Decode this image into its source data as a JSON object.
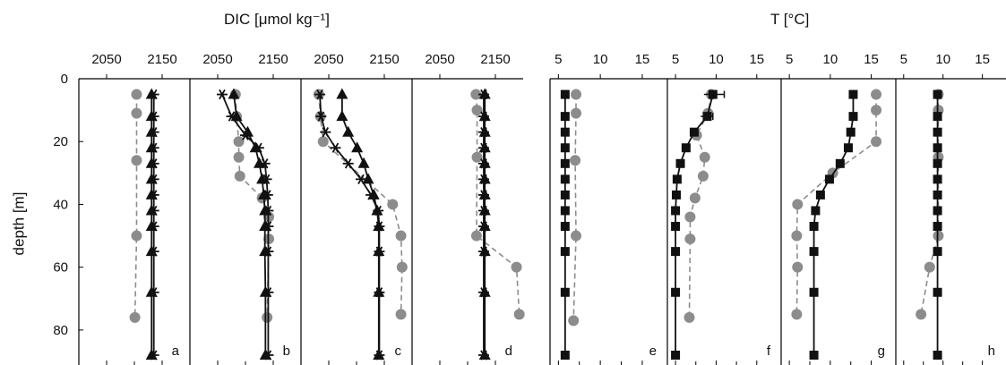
{
  "titles": {
    "dic": "DIC [μmol kg⁻¹]",
    "temperature": "T [°C]",
    "ylabel": "depth [m]"
  },
  "colors": {
    "axis": "#000000",
    "grey_series": "#8c8c8c",
    "black_series": "#111111"
  },
  "chart_data": [
    {
      "type": "line",
      "panel": "a",
      "xlabel": "DIC [μmol kg⁻¹]",
      "ylabel": "depth [m]",
      "xlim": [
        2000,
        2200
      ],
      "xticks": [
        2050,
        2150
      ],
      "ylim": [
        90,
        0
      ],
      "yticks": [
        0,
        20,
        40,
        60,
        80
      ],
      "series": [
        {
          "marker": "circle",
          "color": "#8c8c8c",
          "dashed": true,
          "points": [
            [
              2104,
              5
            ],
            [
              2104,
              11
            ],
            [
              2104,
              26
            ],
            [
              2104,
              50
            ],
            [
              2101,
              76
            ]
          ]
        },
        {
          "marker": "star",
          "color": "#111111",
          "dashed": false,
          "points": [
            [
              2135,
              5
            ],
            [
              2135,
              12
            ],
            [
              2135,
              17
            ],
            [
              2135,
              22
            ],
            [
              2135,
              27
            ],
            [
              2135,
              32
            ],
            [
              2135,
              37
            ],
            [
              2135,
              42
            ],
            [
              2135,
              47
            ],
            [
              2135,
              55
            ],
            [
              2135,
              68
            ],
            [
              2135,
              88
            ]
          ]
        },
        {
          "marker": "triangle",
          "color": "#111111",
          "dashed": false,
          "points": [
            [
              2131,
              5
            ],
            [
              2131,
              12
            ],
            [
              2131,
              17
            ],
            [
              2131,
              22
            ],
            [
              2131,
              27
            ],
            [
              2131,
              32
            ],
            [
              2131,
              37
            ],
            [
              2131,
              42
            ],
            [
              2131,
              47
            ],
            [
              2131,
              55
            ],
            [
              2131,
              68
            ],
            [
              2131,
              88
            ]
          ]
        }
      ]
    },
    {
      "type": "line",
      "panel": "b",
      "xlim": [
        2000,
        2200
      ],
      "xticks": [
        2050,
        2150
      ],
      "ylim": [
        90,
        0
      ],
      "series": [
        {
          "marker": "circle",
          "color": "#8c8c8c",
          "dashed": true,
          "points": [
            [
              2082,
              5
            ],
            [
              2084,
              12
            ],
            [
              2088,
              20
            ],
            [
              2088,
              25
            ],
            [
              2090,
              31
            ],
            [
              2130,
              38
            ],
            [
              2142,
              44
            ],
            [
              2142,
              51
            ],
            [
              2139,
              76
            ]
          ]
        },
        {
          "marker": "star",
          "color": "#111111",
          "dashed": false,
          "points": [
            [
              2058,
              5
            ],
            [
              2075,
              12
            ],
            [
              2100,
              18
            ],
            [
              2124,
              22
            ],
            [
              2135,
              27
            ],
            [
              2138,
              32
            ],
            [
              2140,
              37
            ],
            [
              2141,
              42
            ],
            [
              2141,
              47
            ],
            [
              2141,
              55
            ],
            [
              2141,
              68
            ],
            [
              2141,
              88
            ]
          ]
        },
        {
          "marker": "triangle",
          "color": "#111111",
          "dashed": false,
          "points": [
            [
              2079,
              5
            ],
            [
              2084,
              12
            ],
            [
              2104,
              17
            ],
            [
              2118,
              22
            ],
            [
              2125,
              27
            ],
            [
              2130,
              32
            ],
            [
              2133,
              37
            ],
            [
              2135,
              42
            ],
            [
              2135,
              47
            ],
            [
              2135,
              55
            ],
            [
              2136,
              68
            ],
            [
              2136,
              88
            ]
          ]
        }
      ]
    },
    {
      "type": "line",
      "panel": "c",
      "xlim": [
        2000,
        2200
      ],
      "xticks": [
        2050,
        2150
      ],
      "ylim": [
        90,
        0
      ],
      "series": [
        {
          "marker": "circle",
          "color": "#8c8c8c",
          "dashed": true,
          "points": [
            [
              2032,
              5
            ],
            [
              2035,
              12
            ],
            [
              2040,
              20
            ],
            [
              2165,
              40
            ],
            [
              2180,
              50
            ],
            [
              2182,
              60
            ],
            [
              2180,
              75
            ]
          ]
        },
        {
          "marker": "star",
          "color": "#111111",
          "dashed": false,
          "points": [
            [
              2034,
              5
            ],
            [
              2036,
              12
            ],
            [
              2044,
              17
            ],
            [
              2062,
              22
            ],
            [
              2085,
              27
            ],
            [
              2108,
              32
            ],
            [
              2126,
              37
            ],
            [
              2139,
              42
            ],
            [
              2141,
              47
            ],
            [
              2141,
              55
            ],
            [
              2141,
              68
            ],
            [
              2141,
              88
            ]
          ]
        },
        {
          "marker": "triangle",
          "color": "#111111",
          "dashed": false,
          "points": [
            [
              2074,
              5
            ],
            [
              2074,
              12
            ],
            [
              2085,
              17
            ],
            [
              2101,
              22
            ],
            [
              2113,
              27
            ],
            [
              2121,
              32
            ],
            [
              2131,
              37
            ],
            [
              2137,
              42
            ],
            [
              2140,
              47
            ],
            [
              2140,
              55
            ],
            [
              2140,
              68
            ],
            [
              2140,
              88
            ]
          ]
        }
      ]
    },
    {
      "type": "line",
      "panel": "d",
      "xlim": [
        2000,
        2200
      ],
      "xticks": [
        2050,
        2150
      ],
      "ylim": [
        90,
        0
      ],
      "series": [
        {
          "marker": "circle",
          "color": "#8c8c8c",
          "dashed": true,
          "points": [
            [
              2115,
              5
            ],
            [
              2117,
              10
            ],
            [
              2117,
              25
            ],
            [
              2116,
              50
            ],
            [
              2188,
              60
            ],
            [
              2193,
              75
            ]
          ]
        },
        {
          "marker": "star",
          "color": "#111111",
          "dashed": false,
          "points": [
            [
              2129,
              5
            ],
            [
              2129,
              12
            ],
            [
              2129,
              17
            ],
            [
              2129,
              22
            ],
            [
              2129,
              27
            ],
            [
              2129,
              32
            ],
            [
              2129,
              37
            ],
            [
              2129,
              42
            ],
            [
              2129,
              47
            ],
            [
              2129,
              55
            ],
            [
              2129,
              68
            ],
            [
              2129,
              88
            ]
          ]
        },
        {
          "marker": "triangle",
          "color": "#111111",
          "dashed": false,
          "points": [
            [
              2131,
              5
            ],
            [
              2131,
              12
            ],
            [
              2131,
              17
            ],
            [
              2131,
              22
            ],
            [
              2131,
              27
            ],
            [
              2131,
              32
            ],
            [
              2131,
              37
            ],
            [
              2131,
              42
            ],
            [
              2131,
              47
            ],
            [
              2131,
              55
            ],
            [
              2131,
              68
            ],
            [
              2131,
              88
            ]
          ]
        }
      ]
    },
    {
      "type": "line",
      "panel": "e",
      "xlabel": "T [°C]",
      "xlim": [
        4,
        18
      ],
      "xticks": [
        5,
        10,
        15
      ],
      "ylim": [
        90,
        0
      ],
      "series": [
        {
          "marker": "circle",
          "color": "#8c8c8c",
          "dashed": true,
          "points": [
            [
              7.1,
              5
            ],
            [
              7.1,
              11
            ],
            [
              7.0,
              26
            ],
            [
              7.1,
              50
            ],
            [
              6.8,
              77
            ]
          ]
        },
        {
          "marker": "square",
          "color": "#111111",
          "dashed": false,
          "points": [
            [
              5.8,
              5
            ],
            [
              5.8,
              12
            ],
            [
              5.8,
              17
            ],
            [
              5.8,
              22
            ],
            [
              5.8,
              27
            ],
            [
              5.8,
              32
            ],
            [
              5.8,
              37
            ],
            [
              5.8,
              42
            ],
            [
              5.8,
              47
            ],
            [
              5.8,
              55
            ],
            [
              5.8,
              68
            ],
            [
              5.8,
              88
            ]
          ]
        }
      ]
    },
    {
      "type": "line",
      "panel": "f",
      "xlim": [
        4,
        18
      ],
      "xticks": [
        5,
        10,
        15
      ],
      "ylim": [
        90,
        0
      ],
      "series": [
        {
          "marker": "circle",
          "color": "#8c8c8c",
          "dashed": true,
          "points": [
            [
              9.4,
              5
            ],
            [
              9.0,
              11
            ],
            [
              7.6,
              18
            ],
            [
              8.6,
              25
            ],
            [
              8.4,
              31
            ],
            [
              7.4,
              38
            ],
            [
              6.8,
              44
            ],
            [
              6.8,
              51
            ],
            [
              6.7,
              76
            ]
          ]
        },
        {
          "marker": "square",
          "color": "#111111",
          "dashed": false,
          "points": [
            [
              9.6,
              5
            ],
            [
              8.9,
              12
            ],
            [
              7.3,
              17
            ],
            [
              6.3,
              22
            ],
            [
              5.6,
              27
            ],
            [
              5.2,
              32
            ],
            [
              5.1,
              37
            ],
            [
              5.0,
              42
            ],
            [
              5.0,
              47
            ],
            [
              5.0,
              55
            ],
            [
              5.0,
              68
            ],
            [
              5.0,
              88
            ]
          ]
        }
      ]
    },
    {
      "type": "line",
      "panel": "g",
      "xlim": [
        4,
        18
      ],
      "xticks": [
        5,
        10,
        15
      ],
      "ylim": [
        90,
        0
      ],
      "series": [
        {
          "marker": "circle",
          "color": "#8c8c8c",
          "dashed": true,
          "points": [
            [
              15.6,
              5
            ],
            [
              15.6,
              10
            ],
            [
              15.6,
              20
            ],
            [
              10.3,
              30
            ],
            [
              6.0,
              40
            ],
            [
              5.9,
              50
            ],
            [
              6.0,
              60
            ],
            [
              5.9,
              75
            ]
          ]
        },
        {
          "marker": "square",
          "color": "#111111",
          "dashed": false,
          "points": [
            [
              12.8,
              5
            ],
            [
              12.8,
              12
            ],
            [
              12.5,
              17
            ],
            [
              12.2,
              22
            ],
            [
              11.2,
              27
            ],
            [
              9.9,
              32
            ],
            [
              8.8,
              37
            ],
            [
              8.2,
              42
            ],
            [
              8.0,
              47
            ],
            [
              8.0,
              55
            ],
            [
              8.0,
              68
            ],
            [
              8.0,
              88
            ]
          ]
        }
      ]
    },
    {
      "type": "line",
      "panel": "h",
      "xlim": [
        4,
        18
      ],
      "xticks": [
        5,
        10,
        15
      ],
      "ylim": [
        90,
        0
      ],
      "series": [
        {
          "marker": "circle",
          "color": "#8c8c8c",
          "dashed": true,
          "points": [
            [
              9.4,
              5
            ],
            [
              9.4,
              10
            ],
            [
              9.4,
              25
            ],
            [
              9.4,
              50
            ],
            [
              8.3,
              60
            ],
            [
              7.2,
              75
            ]
          ]
        },
        {
          "marker": "square",
          "color": "#111111",
          "dashed": false,
          "points": [
            [
              9.3,
              5
            ],
            [
              9.3,
              12
            ],
            [
              9.3,
              17
            ],
            [
              9.3,
              22
            ],
            [
              9.3,
              27
            ],
            [
              9.3,
              32
            ],
            [
              9.3,
              37
            ],
            [
              9.3,
              42
            ],
            [
              9.3,
              47
            ],
            [
              9.3,
              55
            ],
            [
              9.3,
              68
            ],
            [
              9.3,
              88
            ]
          ]
        }
      ]
    }
  ]
}
